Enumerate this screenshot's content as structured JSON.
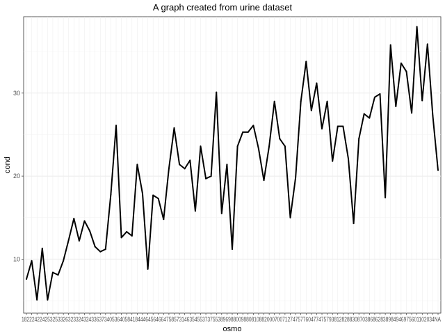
{
  "chart_data": {
    "type": "line",
    "title": "A graph created from urine dataset",
    "xlabel": "osmo",
    "ylabel": "cond",
    "ylim": [
      3.5,
      39.2
    ],
    "grid": true,
    "line_color": "#000000",
    "background": "#ffffff",
    "grid_color": "#ebebeb",
    "y_ticks": [
      10,
      20,
      30
    ],
    "x_tick_text": "1822242242532533263233243243363734053640584184446456466475857314635455373755389698800988081088200070071274757760477475793812828830870386862838984946975601102034NA",
    "values": [
      7.6,
      9.8,
      5.1,
      11.3,
      5.1,
      8.4,
      8.1,
      9.8,
      12.3,
      14.9,
      12.2,
      14.6,
      13.4,
      11.5,
      10.9,
      11.2,
      17.8,
      26.1,
      12.6,
      13.3,
      12.8,
      21.4,
      17.9,
      8.8,
      17.7,
      17.3,
      14.8,
      20.9,
      25.8,
      21.4,
      20.9,
      21.9,
      15.8,
      23.6,
      19.7,
      20.0,
      30.1,
      15.5,
      21.4,
      11.2,
      23.6,
      25.3,
      25.3,
      26.1,
      23.3,
      19.5,
      23.6,
      29.0,
      24.5,
      23.6,
      15.0,
      19.8,
      29.0,
      33.8,
      27.9,
      31.2,
      25.7,
      29.0,
      21.8,
      26.0,
      26.0,
      22.1,
      14.3,
      24.5,
      27.5,
      27.0,
      29.5,
      29.9,
      17.4,
      35.8,
      28.4,
      33.6,
      32.6,
      27.6,
      38.0,
      29.1,
      35.9,
      27.3,
      20.7
    ]
  }
}
